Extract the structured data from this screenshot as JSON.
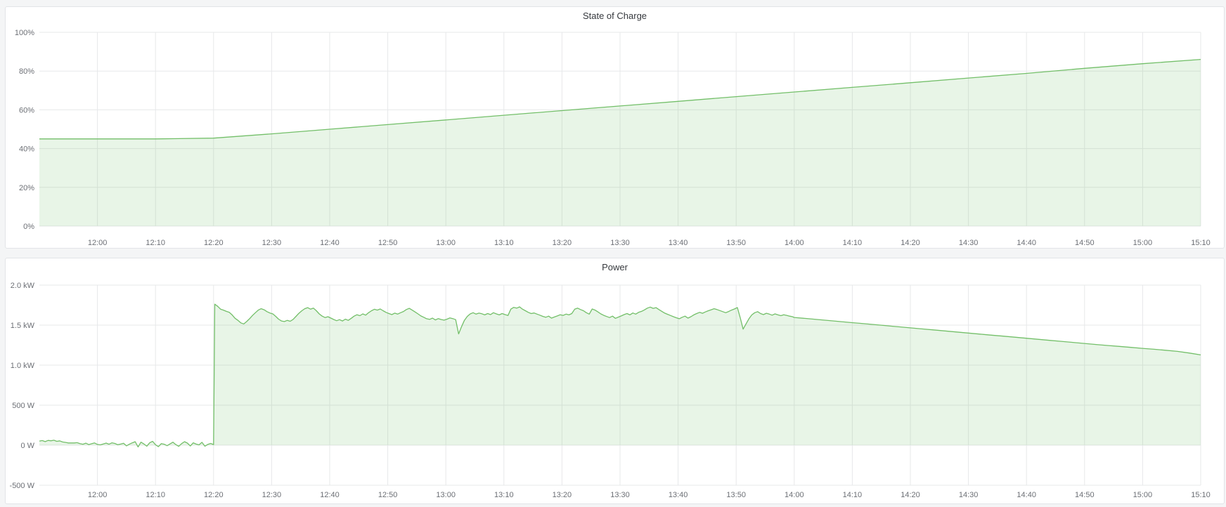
{
  "page": {
    "background_color": "#f4f5f6",
    "panel_background": "#ffffff",
    "accent_color": "#73bf69"
  },
  "chart_data": [
    {
      "type": "area",
      "title": "State of Charge",
      "xlabel": "",
      "ylabel": "",
      "y_min": 0,
      "y_max": 100,
      "t_min": 0,
      "t_max": 200,
      "line_color": "#73bf69",
      "fill_color": "rgba(115,191,105,0.16)",
      "grid_color": "#e7e8ea",
      "tick_color": "#6c6f75",
      "y_ticks": [
        {
          "v": 0,
          "label": "0%"
        },
        {
          "v": 20,
          "label": "20%"
        },
        {
          "v": 40,
          "label": "40%"
        },
        {
          "v": 60,
          "label": "60%"
        },
        {
          "v": 80,
          "label": "80%"
        },
        {
          "v": 100,
          "label": "100%"
        }
      ],
      "x_ticks": [
        {
          "t": 10,
          "label": "12:00"
        },
        {
          "t": 20,
          "label": "12:10"
        },
        {
          "t": 30,
          "label": "12:20"
        },
        {
          "t": 40,
          "label": "12:30"
        },
        {
          "t": 50,
          "label": "12:40"
        },
        {
          "t": 60,
          "label": "12:50"
        },
        {
          "t": 70,
          "label": "13:00"
        },
        {
          "t": 80,
          "label": "13:10"
        },
        {
          "t": 90,
          "label": "13:20"
        },
        {
          "t": 100,
          "label": "13:30"
        },
        {
          "t": 110,
          "label": "13:40"
        },
        {
          "t": 120,
          "label": "13:50"
        },
        {
          "t": 130,
          "label": "14:00"
        },
        {
          "t": 140,
          "label": "14:10"
        },
        {
          "t": 150,
          "label": "14:20"
        },
        {
          "t": 160,
          "label": "14:30"
        },
        {
          "t": 170,
          "label": "14:40"
        },
        {
          "t": 180,
          "label": "14:50"
        },
        {
          "t": 190,
          "label": "15:00"
        },
        {
          "t": 200,
          "label": "15:10"
        }
      ],
      "series": {
        "name": "State of Charge",
        "unit": "%",
        "phases": [
          {
            "t0": 0,
            "dt": 10,
            "values": [
              45,
              45,
              45,
              45.4,
              47.6,
              50,
              52.4,
              54.8,
              57.2,
              59.6,
              62,
              64.4,
              66.8,
              69.2,
              71.6,
              74,
              76.4,
              78.8,
              81.4,
              83.8,
              86
            ]
          }
        ]
      }
    },
    {
      "type": "area",
      "title": "Power",
      "xlabel": "",
      "ylabel": "",
      "y_min": -500,
      "y_max": 2000,
      "t_min": 0,
      "t_max": 200,
      "line_color": "#73bf69",
      "fill_color": "rgba(115,191,105,0.16)",
      "grid_color": "#e7e8ea",
      "tick_color": "#6c6f75",
      "y_ticks": [
        {
          "v": -500,
          "label": "-500 W"
        },
        {
          "v": 0,
          "label": "0 W"
        },
        {
          "v": 500,
          "label": "500 W"
        },
        {
          "v": 1000,
          "label": "1.0 kW"
        },
        {
          "v": 1500,
          "label": "1.5 kW"
        },
        {
          "v": 2000,
          "label": "2.0 kW"
        }
      ],
      "x_ticks": [
        {
          "t": 10,
          "label": "12:00"
        },
        {
          "t": 20,
          "label": "12:10"
        },
        {
          "t": 30,
          "label": "12:20"
        },
        {
          "t": 40,
          "label": "12:30"
        },
        {
          "t": 50,
          "label": "12:40"
        },
        {
          "t": 60,
          "label": "12:50"
        },
        {
          "t": 70,
          "label": "13:00"
        },
        {
          "t": 80,
          "label": "13:10"
        },
        {
          "t": 90,
          "label": "13:20"
        },
        {
          "t": 100,
          "label": "13:30"
        },
        {
          "t": 110,
          "label": "13:40"
        },
        {
          "t": 120,
          "label": "13:50"
        },
        {
          "t": 130,
          "label": "14:00"
        },
        {
          "t": 140,
          "label": "14:10"
        },
        {
          "t": 150,
          "label": "14:20"
        },
        {
          "t": 160,
          "label": "14:30"
        },
        {
          "t": 170,
          "label": "14:40"
        },
        {
          "t": 180,
          "label": "14:50"
        },
        {
          "t": 190,
          "label": "15:00"
        },
        {
          "t": 200,
          "label": "15:10"
        }
      ],
      "series": {
        "name": "Power",
        "unit": "W",
        "phases": [
          {
            "t0": 0,
            "dt": 0.5,
            "values": [
              52,
              58,
              45,
              60,
              55,
              62,
              48,
              54,
              40,
              35,
              28,
              28,
              28,
              32,
              20,
              12,
              25,
              8,
              18,
              28,
              10,
              4,
              16,
              26,
              12,
              30,
              22,
              6,
              14,
              24,
              -8,
              12,
              30,
              44,
              -22,
              38,
              16,
              -12,
              30,
              48,
              6,
              -18,
              20,
              12,
              -6,
              16,
              38,
              8,
              -14,
              20,
              44,
              26,
              -10,
              30,
              14,
              4,
              36,
              -12,
              10,
              22,
              8
            ]
          },
          {
            "t0": 30.2,
            "dt": 0.5,
            "values": [
              1762,
              1735,
              1700,
              1688,
              1672,
              1660,
              1628,
              1585,
              1560,
              1528,
              1515,
              1545,
              1580,
              1620,
              1655,
              1688,
              1705,
              1692,
              1668,
              1652,
              1640,
              1610,
              1575,
              1552,
              1545,
              1560,
              1548,
              1572,
              1610,
              1648,
              1680,
              1705,
              1718,
              1700,
              1712,
              1680,
              1640,
              1612,
              1595,
              1605,
              1588,
              1570,
              1555,
              1568,
              1552,
              1575,
              1560,
              1585,
              1612,
              1630,
              1618,
              1640,
              1625,
              1655,
              1680,
              1698,
              1688,
              1702,
              1680,
              1660,
              1645,
              1632,
              1650,
              1638,
              1655,
              1670,
              1695,
              1710,
              1688,
              1665,
              1640,
              1615,
              1598,
              1580,
              1572,
              1588,
              1565,
              1582,
              1570,
              1562,
              1575,
              1590,
              1582,
              1568,
              1390,
              1480,
              1560,
              1610,
              1640,
              1655,
              1638,
              1650,
              1642,
              1628,
              1645,
              1632,
              1655,
              1640,
              1628,
              1645,
              1632,
              1620,
              1700,
              1722,
              1712,
              1728,
              1700,
              1680,
              1660,
              1645,
              1652,
              1638,
              1625,
              1610,
              1598,
              1612,
              1588,
              1602,
              1615,
              1630,
              1622,
              1638,
              1628,
              1645,
              1700,
              1712,
              1695,
              1680,
              1655,
              1638,
              1702,
              1688,
              1665,
              1640,
              1622,
              1608,
              1595,
              1612,
              1585,
              1600,
              1615,
              1632,
              1645,
              1628,
              1652,
              1638,
              1660,
              1672,
              1690,
              1712,
              1725,
              1710,
              1718,
              1695,
              1672,
              1650,
              1635,
              1620,
              1605,
              1592,
              1580,
              1598,
              1612,
              1588,
              1605,
              1628,
              1645,
              1660,
              1648,
              1665,
              1680,
              1692,
              1705,
              1695,
              1682,
              1668,
              1655,
              1670,
              1688,
              1702,
              1720,
              1592,
              1450,
              1515,
              1580,
              1628,
              1655,
              1668,
              1645,
              1632,
              1648,
              1638,
              1625,
              1640,
              1628,
              1618,
              1630,
              1622,
              1612,
              1605
            ]
          },
          {
            "t0": 130,
            "dt": 2,
            "values": [
              1596,
              1583,
              1570,
              1557,
              1544,
              1531,
              1518,
              1505,
              1492,
              1479,
              1466,
              1453,
              1440,
              1427,
              1414,
              1401,
              1388,
              1375,
              1362,
              1349,
              1336,
              1323,
              1310,
              1297,
              1284,
              1271,
              1258,
              1246,
              1234,
              1222,
              1210,
              1198,
              1186,
              1172,
              1152,
              1128
            ]
          }
        ]
      }
    }
  ]
}
